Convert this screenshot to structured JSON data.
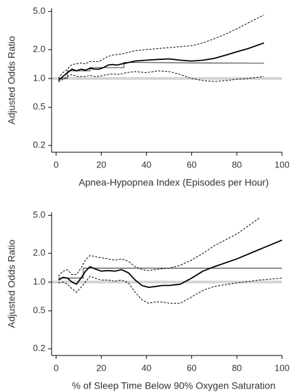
{
  "chart_data": [
    {
      "type": "line",
      "y_label": "Adjusted Odds Ratio",
      "x_label": "Apnea-Hypopnea Index (Episodes per Hour)",
      "log_y": true,
      "xlim": [
        -2,
        100
      ],
      "xticks": [
        0,
        20,
        40,
        60,
        80,
        100
      ],
      "ylim": [
        0.17,
        5.4
      ],
      "yticks": [
        0.2,
        0.5,
        {
          "value": 1,
          "label": "1.0"
        },
        {
          "value": 2,
          "label": "2.0"
        },
        {
          "value": 5,
          "label": "5.0"
        }
      ],
      "reference_line": 1,
      "reference_color": "#d4d4d4",
      "x": [
        1,
        3,
        5,
        7,
        9,
        11,
        13,
        15,
        17,
        19,
        21,
        23,
        25,
        27,
        29,
        31,
        35,
        40,
        45,
        50,
        55,
        60,
        65,
        70,
        75,
        80,
        85,
        92
      ],
      "series": [
        {
          "color": "#000000",
          "style": "solid",
          "width": 1.8,
          "values": [
            0.95,
            1.05,
            1.15,
            1.25,
            1.2,
            1.25,
            1.22,
            1.28,
            1.25,
            1.25,
            1.3,
            1.38,
            1.4,
            1.38,
            1.42,
            1.45,
            1.52,
            1.55,
            1.58,
            1.6,
            1.55,
            1.52,
            1.55,
            1.62,
            1.75,
            1.9,
            2.05,
            2.35
          ]
        },
        {
          "color": "#000000",
          "style": "dashed",
          "width": 1,
          "values": [
            1.0,
            1.15,
            1.25,
            1.4,
            1.42,
            1.45,
            1.42,
            1.5,
            1.5,
            1.5,
            1.6,
            1.7,
            1.75,
            1.78,
            1.8,
            1.85,
            1.95,
            2.0,
            2.05,
            2.1,
            2.15,
            2.2,
            2.35,
            2.6,
            2.9,
            3.3,
            3.8,
            4.6
          ]
        },
        {
          "color": "#000000",
          "style": "dashed",
          "width": 1,
          "values": [
            0.92,
            0.98,
            1.05,
            1.1,
            1.05,
            1.05,
            1.05,
            1.08,
            1.05,
            1.05,
            1.08,
            1.1,
            1.12,
            1.1,
            1.12,
            1.15,
            1.18,
            1.15,
            1.2,
            1.18,
            1.1,
            1.0,
            0.95,
            0.93,
            0.95,
            0.98,
            1.0,
            1.05
          ]
        },
        {
          "color": "#000000",
          "style": "solid",
          "width": 0.8,
          "x": [
            1,
            5,
            5,
            15,
            15,
            30,
            30,
            92
          ],
          "values": [
            1.0,
            1.0,
            1.2,
            1.2,
            1.3,
            1.3,
            1.47,
            1.44
          ]
        }
      ]
    },
    {
      "type": "line",
      "y_label": "Adjusted Odds Ratio",
      "x_label": "% of Sleep Time Below 90% Oxygen Saturation",
      "log_y": true,
      "xlim": [
        -2,
        100
      ],
      "xticks": [
        0,
        20,
        40,
        60,
        80,
        100
      ],
      "ylim": [
        0.17,
        5.4
      ],
      "yticks": [
        0.2,
        0.5,
        {
          "value": 1,
          "label": "1.0"
        },
        {
          "value": 2,
          "label": "2.0"
        },
        {
          "value": 5,
          "label": "5.0"
        }
      ],
      "reference_line": 1,
      "reference_color": "#d4d4d4",
      "x": [
        1,
        3,
        5,
        7,
        9,
        11,
        13,
        15,
        17,
        20,
        23,
        26,
        29,
        32,
        35,
        38,
        41,
        44,
        47,
        50,
        55,
        60,
        65,
        70,
        80,
        90,
        100
      ],
      "series": [
        {
          "color": "#000000",
          "style": "solid",
          "width": 1.8,
          "values": [
            1.05,
            1.12,
            1.1,
            1.0,
            0.95,
            1.1,
            1.3,
            1.45,
            1.38,
            1.3,
            1.32,
            1.3,
            1.35,
            1.25,
            1.05,
            0.92,
            0.88,
            0.9,
            0.92,
            0.92,
            0.95,
            1.1,
            1.3,
            1.45,
            1.75,
            2.2,
            2.75
          ]
        },
        {
          "color": "#000000",
          "style": "dashed",
          "width": 1,
          "values": [
            1.15,
            1.3,
            1.35,
            1.2,
            1.2,
            1.4,
            1.7,
            1.9,
            1.85,
            1.8,
            1.75,
            1.7,
            1.75,
            1.65,
            1.45,
            1.35,
            1.32,
            1.35,
            1.38,
            1.4,
            1.5,
            1.7,
            2.0,
            2.4,
            3.2,
            4.7,
            null
          ]
        },
        {
          "color": "#000000",
          "style": "dashed",
          "width": 1,
          "values": [
            0.98,
            1.0,
            0.95,
            0.85,
            0.78,
            0.88,
            1.0,
            1.15,
            1.1,
            1.05,
            1.05,
            1.02,
            1.05,
            0.98,
            0.78,
            0.65,
            0.6,
            0.62,
            0.62,
            0.6,
            0.6,
            0.7,
            0.82,
            0.9,
            0.98,
            1.05,
            1.1
          ]
        },
        {
          "color": "#000000",
          "style": "solid",
          "width": 0.8,
          "x": [
            1,
            12,
            12,
            100
          ],
          "values": [
            1.1,
            1.1,
            1.4,
            1.4
          ]
        }
      ]
    }
  ]
}
